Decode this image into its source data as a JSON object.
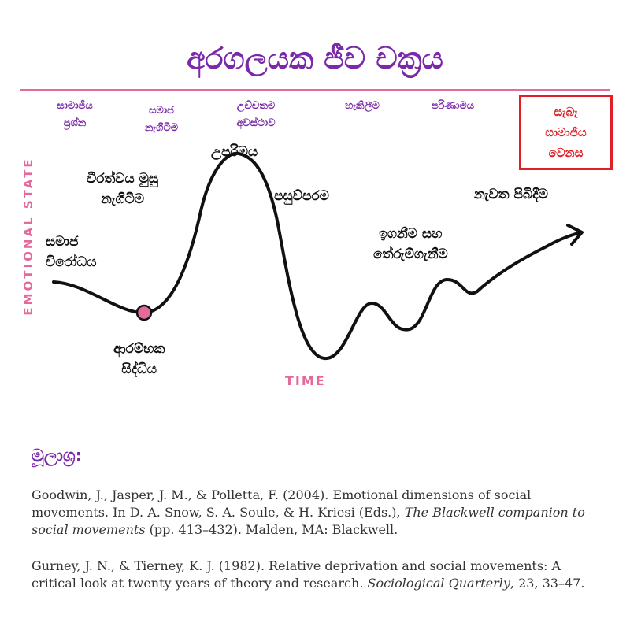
{
  "title": "අරගලයක ජීව චක්‍රය",
  "phases": [
    "සාමාජීය\nප්‍රශ්න",
    "සමාජ\nනැගිටීම",
    "උච්චතම\nඅවස්ථාව",
    "හැකිලීම",
    "පරිණාමය",
    "සැබෑ\nසාමාජීය\nවෙනස"
  ],
  "axes": {
    "y_label": "EMOTIONAL STATE",
    "x_label": "TIME"
  },
  "curve_labels": {
    "social_conflict": "සමාජ\nවිරෝධය",
    "heroic_uprising": "වීරත්වය මුසු\nනැගිටීම",
    "peak": "උපරිමය",
    "retreat": "පසුව්පරම",
    "learning": "ඉගනීම සහ\nතේරුම්ගැනීම",
    "renewal": "නැවත පිබිදීම",
    "origin_event": "ආරම්භක\nසිද්ධිය"
  },
  "colors": {
    "title": "#7a2aa8",
    "accent": "#e36a9a",
    "highlight": "#e11f26"
  },
  "sources": {
    "heading": "මූලාශ්‍ර:",
    "refs": [
      {
        "before": "Goodwin, J., Jasper, J. M., & Polletta, F. (2004). Emotional dimensions of social movements. In D. A. Snow, S. A. Soule, & H. Kriesi (Eds.), ",
        "italic": "The Blackwell companion to social movements",
        "after": " (pp. 413–432). Malden, MA: Blackwell."
      },
      {
        "before": "Gurney, J. N., & Tierney, K. J. (1982). Relative deprivation and social movements: A critical look at twenty years of theory and research. ",
        "italic": "Sociological Quarterly",
        "after": ", 23, 33–47."
      }
    ]
  }
}
